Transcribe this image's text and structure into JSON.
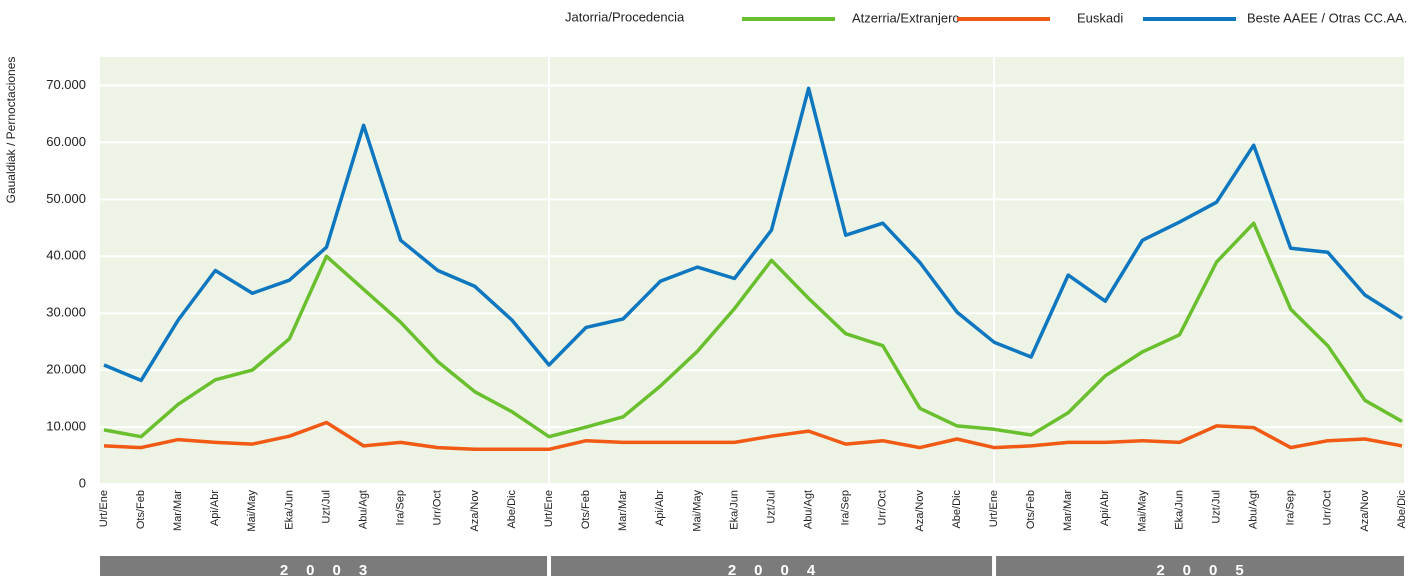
{
  "chart_data": {
    "type": "line",
    "legend_title": "Jatorria/Procedencia",
    "y_axis_label": "Gaualdiak / Pernoctaciones",
    "categories": [
      "Urt/Ene",
      "Ots/Feb",
      "Mar/Mar",
      "Api/Abr",
      "Mai/May",
      "Eka/Jun",
      "Uzt/Jul",
      "Abu/Agt",
      "Ira/Sep",
      "Urr/Oct",
      "Aza/Nov",
      "Abe/Dic",
      "Urt/Ene",
      "Ots/Feb",
      "Mar/Mar",
      "Api/Abr",
      "Mai/May",
      "Eka/Jun",
      "Uzt/Jul",
      "Abu/Agt",
      "Ira/Sep",
      "Urr/Oct",
      "Aza/Nov",
      "Abe/Dic",
      "Urt/Ene",
      "Ots/Feb",
      "Mar/Mar",
      "Api/Abr",
      "Mai/May",
      "Eka/Jun",
      "Uzt/Jul",
      "Abu/Agt",
      "Ira/Sep",
      "Urr/Oct",
      "Aza/Nov",
      "Abe/Dic"
    ],
    "groups": [
      "2003",
      "2004",
      "2005"
    ],
    "series": [
      {
        "name": "Atzerria/Extranjero",
        "color": "#6abf2e",
        "values": [
          9500,
          8300,
          14000,
          18300,
          20000,
          25500,
          40000,
          34200,
          28400,
          21500,
          16200,
          12700,
          8300,
          10000,
          11800,
          17200,
          23300,
          30800,
          39300,
          32600,
          26400,
          24300,
          13300,
          10200,
          9600,
          8600,
          12500,
          19000,
          23200,
          26200,
          39000,
          45800,
          30700,
          24300,
          14700,
          11000
        ]
      },
      {
        "name": "Euskadi",
        "color": "#f05a14",
        "values": [
          6700,
          6400,
          7800,
          7300,
          7000,
          8400,
          10800,
          6700,
          7300,
          6400,
          6100,
          6100,
          6100,
          7600,
          7300,
          7300,
          7300,
          7300,
          8400,
          9300,
          7000,
          7600,
          6400,
          7900,
          6400,
          6700,
          7300,
          7300,
          7600,
          7300,
          10200,
          9900,
          6400,
          7600,
          7900,
          6700
        ]
      },
      {
        "name": "Beste AAEE / Otras CC.AA.",
        "color": "#0e77bf",
        "values": [
          20900,
          18200,
          28800,
          37500,
          33500,
          35800,
          41600,
          63000,
          42800,
          37500,
          34700,
          28800,
          20900,
          27500,
          29000,
          35600,
          38100,
          36100,
          44600,
          69500,
          43700,
          45800,
          38900,
          30200,
          24900,
          22300,
          36700,
          32100,
          42800,
          46000,
          49500,
          59500,
          41400,
          40700,
          33200,
          29100
        ]
      }
    ],
    "ylim": [
      0,
      75000
    ],
    "yticks": [
      0,
      {
        "value": 10000,
        "label": "10.000"
      },
      {
        "value": 20000,
        "label": "20.000"
      },
      {
        "value": 30000,
        "label": "30.000"
      },
      {
        "value": 40000,
        "label": "40.000"
      },
      {
        "value": 50000,
        "label": "50.000"
      },
      {
        "value": 60000,
        "label": "60.000"
      },
      {
        "value": 70000,
        "label": "70.000"
      }
    ],
    "grid": true,
    "background": "#eef4e5"
  }
}
